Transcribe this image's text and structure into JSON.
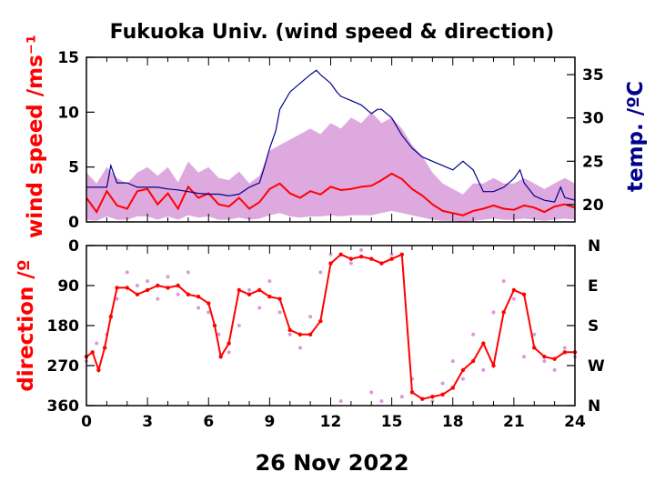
{
  "title": "Fukuoka Univ. (wind speed & direction)",
  "date_label": "26 Nov 2022",
  "colors": {
    "wind": "#ff0000",
    "gust_band": "#d89ad8",
    "temp": "#00008b",
    "axis": "#000000"
  },
  "chart_data": [
    {
      "type": "line",
      "panel": "top",
      "ylabel_left": "wind speed /ms⁻¹",
      "ylabel_right": "temp. /ºC",
      "xlim": [
        0,
        24
      ],
      "x_ticks": [
        "0",
        "3",
        "6",
        "9",
        "12",
        "15",
        "18",
        "21",
        "24"
      ],
      "ylim_left": [
        0,
        15
      ],
      "y_ticks_left": [
        "0",
        "5",
        "10",
        "15"
      ],
      "ylim_right": [
        18,
        37
      ],
      "y_ticks_right": [
        "20",
        "25",
        "30",
        "35"
      ],
      "series": [
        {
          "axis": "left",
          "color": "#ff0000",
          "x": [
            0,
            0.5,
            1,
            1.5,
            2,
            2.5,
            3,
            3.5,
            4,
            4.5,
            5,
            5.5,
            6,
            6.5,
            7,
            7.5,
            8,
            8.5,
            9,
            9.5,
            10,
            10.5,
            11,
            11.5,
            12,
            12.5,
            13,
            13.5,
            14,
            14.5,
            15,
            15.5,
            16,
            16.5,
            17,
            17.5,
            18,
            18.5,
            19,
            19.5,
            20,
            20.5,
            21,
            21.5,
            22,
            22.5,
            23,
            23.5,
            24
          ],
          "y": [
            2.2,
            0.9,
            2.8,
            1.5,
            1.2,
            2.8,
            3.0,
            1.6,
            2.6,
            1.2,
            3.2,
            2.2,
            2.6,
            1.6,
            1.4,
            2.2,
            1.2,
            1.8,
            3.0,
            3.5,
            2.6,
            2.2,
            2.8,
            2.5,
            3.2,
            2.9,
            3.0,
            3.2,
            3.3,
            3.8,
            4.4,
            3.9,
            3.0,
            2.4,
            1.6,
            1.0,
            0.8,
            0.6,
            1.0,
            1.2,
            1.5,
            1.2,
            1.1,
            1.5,
            1.3,
            0.9,
            1.4,
            1.6,
            1.3
          ]
        },
        {
          "axis": "left",
          "color": "#d89ad8",
          "x": [
            0,
            0.5,
            1,
            1.5,
            2,
            2.5,
            3,
            3.5,
            4,
            4.5,
            5,
            5.5,
            6,
            6.5,
            7,
            7.5,
            8,
            8.5,
            9,
            9.5,
            10,
            10.5,
            11,
            11.5,
            12,
            12.5,
            13,
            13.5,
            14,
            14.5,
            15,
            15.5,
            16,
            16.5,
            17,
            17.5,
            18,
            18.5,
            19,
            19.5,
            20,
            20.5,
            21,
            21.5,
            22,
            22.5,
            23,
            23.5,
            24
          ],
          "y_low": [
            0.2,
            0.1,
            0.5,
            0.2,
            0.2,
            0.5,
            0.5,
            0.2,
            0.5,
            0.2,
            0.6,
            0.4,
            0.5,
            0.2,
            0.2,
            0.4,
            0.2,
            0.3,
            0.6,
            0.8,
            0.5,
            0.4,
            0.5,
            0.5,
            0.6,
            0.5,
            0.6,
            0.6,
            0.6,
            0.8,
            1.0,
            0.8,
            0.6,
            0.4,
            0.2,
            0.1,
            0.1,
            0.0,
            0.1,
            0.2,
            0.3,
            0.2,
            0.2,
            0.3,
            0.2,
            0.1,
            0.2,
            0.3,
            0.2
          ],
          "y_high": [
            4.5,
            3.5,
            5.0,
            4.0,
            3.5,
            4.5,
            5.0,
            4.2,
            5.0,
            3.6,
            5.5,
            4.5,
            5.0,
            4.0,
            3.8,
            4.6,
            3.5,
            4.2,
            6.5,
            7.0,
            7.5,
            8.0,
            8.5,
            8.0,
            9.0,
            8.5,
            9.5,
            9.0,
            10.0,
            9.0,
            9.5,
            8.5,
            7.0,
            6.0,
            4.5,
            3.5,
            3.0,
            2.5,
            3.5,
            3.5,
            4.0,
            3.5,
            3.5,
            4.0,
            3.5,
            3.0,
            3.5,
            4.0,
            3.5
          ]
        },
        {
          "axis": "right",
          "color": "#00008b",
          "x": [
            0,
            0.5,
            1,
            1.2,
            1.5,
            2,
            2.5,
            3,
            3.5,
            4,
            4.5,
            5,
            5.5,
            6,
            6.5,
            7,
            7.5,
            8,
            8.5,
            8.7,
            9,
            9.3,
            9.5,
            10,
            10.5,
            11,
            11.3,
            11.5,
            12,
            12.3,
            12.5,
            13,
            13.5,
            14,
            14.3,
            14.5,
            15,
            15.5,
            16,
            16.5,
            17,
            17.5,
            18,
            18.5,
            19,
            19.5,
            20,
            20.5,
            21,
            21.3,
            21.5,
            22,
            22.5,
            23,
            23.3,
            23.5,
            24
          ],
          "y": [
            22,
            22,
            22,
            24.5,
            22.5,
            22.5,
            22,
            22,
            22,
            21.8,
            21.7,
            21.5,
            21.3,
            21.2,
            21.2,
            21,
            21.2,
            22,
            22.5,
            24,
            26.5,
            28.5,
            31,
            33,
            34,
            35,
            35.5,
            35,
            34,
            33,
            32.5,
            32,
            31.5,
            30.5,
            31,
            31,
            30,
            28,
            26.5,
            25.5,
            25,
            24.5,
            24,
            25,
            24,
            21.5,
            21.5,
            22,
            23,
            24,
            22.5,
            21,
            20.5,
            20.3,
            22,
            20.8,
            20.5
          ]
        }
      ]
    },
    {
      "type": "scatter",
      "panel": "bottom",
      "ylabel_left": "direction /º",
      "xlim": [
        0,
        24
      ],
      "x_ticks": [
        "0",
        "3",
        "6",
        "9",
        "12",
        "15",
        "18",
        "21",
        "24"
      ],
      "ylim_left": [
        0,
        360
      ],
      "y_inverted": true,
      "y_ticks_left": [
        "0",
        "90",
        "180",
        "270",
        "360"
      ],
      "y_ticks_right": [
        "N",
        "E",
        "S",
        "W",
        "N"
      ],
      "series": [
        {
          "color": "#ff0000",
          "x": [
            0,
            0.3,
            0.6,
            0.9,
            1.2,
            1.5,
            2,
            2.5,
            3,
            3.5,
            4,
            4.5,
            5,
            5.5,
            6,
            6.3,
            6.6,
            7,
            7.5,
            8,
            8.5,
            9,
            9.5,
            10,
            10.5,
            11,
            11.5,
            12,
            12.5,
            13,
            13.5,
            14,
            14.5,
            15,
            15.5,
            16,
            16.5,
            17,
            17.5,
            18,
            18.5,
            19,
            19.5,
            20,
            20.5,
            21,
            21.5,
            22,
            22.5,
            23,
            23.5,
            24
          ],
          "y": [
            250,
            240,
            280,
            230,
            160,
            95,
            95,
            110,
            100,
            90,
            95,
            90,
            110,
            115,
            130,
            180,
            250,
            220,
            100,
            110,
            100,
            115,
            120,
            190,
            200,
            200,
            170,
            40,
            20,
            30,
            25,
            30,
            40,
            30,
            20,
            330,
            345,
            340,
            335,
            320,
            280,
            260,
            220,
            270,
            150,
            100,
            110,
            230,
            250,
            255,
            240,
            240
          ]
        },
        {
          "color": "#d89ad8",
          "x": [
            0,
            0.5,
            1,
            1.5,
            2,
            2.5,
            3,
            3.5,
            4,
            4.5,
            5,
            5.5,
            6,
            6.5,
            7,
            7.5,
            8,
            8.5,
            9,
            9.5,
            10,
            10.5,
            11,
            11.5,
            12,
            12.5,
            13,
            13.5,
            14,
            14.5,
            15,
            15.5,
            16,
            16.5,
            17,
            17.5,
            18,
            18.5,
            19,
            19.5,
            20,
            20.5,
            21,
            21.5,
            22,
            22.5,
            23,
            23.5,
            24
          ],
          "y": [
            260,
            220,
            200,
            120,
            60,
            90,
            80,
            120,
            70,
            110,
            60,
            140,
            150,
            200,
            240,
            180,
            100,
            140,
            80,
            150,
            200,
            230,
            160,
            60,
            20,
            350,
            40,
            10,
            330,
            350,
            20,
            340,
            300,
            345,
            350,
            310,
            260,
            300,
            200,
            280,
            150,
            80,
            120,
            250,
            200,
            260,
            280,
            230,
            250
          ]
        }
      ]
    }
  ]
}
